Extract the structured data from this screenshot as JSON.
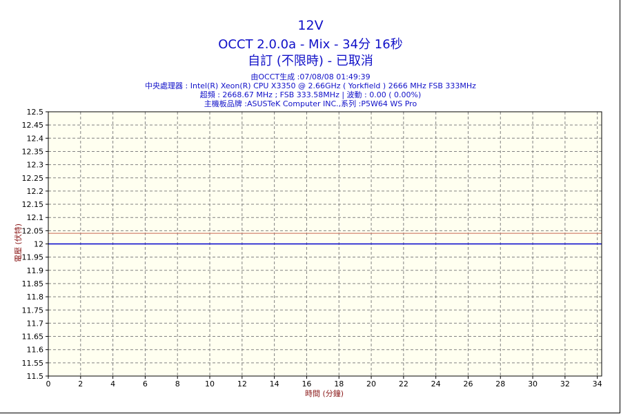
{
  "title_line1": "12V",
  "title_line2": "OCCT 2.0.0a - Mix - 34分 16秒",
  "title_line3": "自訂 (不限時) - 已取消",
  "info_lines": [
    "由OCCT生成 :07/08/08 01:49:39",
    "中央處理器 : Intel(R) Xeon(R) CPU X3350 @ 2.66GHz ( Yorkfield ) 2666 MHz FSB 333MHz",
    "超頻 : 2668.67 MHz ; FSB 333.58MHz | 波動 : 0.00 ( 0.00%)",
    "主機板品牌 :ASUSTeK Computer INC.,系列 :P5W64 WS Pro"
  ],
  "colors": {
    "plot_background": "#fffff0",
    "grid": "#808080",
    "series_line": "#0000cc",
    "limit_line": "#c86450",
    "title": "#1010c8",
    "axis_label": "#8b1a1a"
  },
  "chart_data": {
    "type": "line",
    "xlabel": "時間 (分鐘)",
    "ylabel": "電壓 (伏特)",
    "xlim": [
      0,
      34.27
    ],
    "ylim": [
      11.5,
      12.5
    ],
    "x_ticks": [
      0,
      2,
      4,
      6,
      8,
      10,
      12,
      14,
      16,
      18,
      20,
      22,
      24,
      26,
      28,
      30,
      32,
      34
    ],
    "y_ticks": [
      11.5,
      11.55,
      11.6,
      11.65,
      11.7,
      11.75,
      11.8,
      11.85,
      11.9,
      11.95,
      12,
      12.05,
      12.1,
      12.15,
      12.2,
      12.25,
      12.3,
      12.35,
      12.4,
      12.45,
      12.5
    ],
    "grid": true,
    "legend": "none",
    "series": [
      {
        "x": [
          0,
          34.27
        ],
        "values": [
          12.0,
          12.0
        ]
      }
    ],
    "reference_lines": [
      {
        "y": 12.04
      }
    ]
  }
}
